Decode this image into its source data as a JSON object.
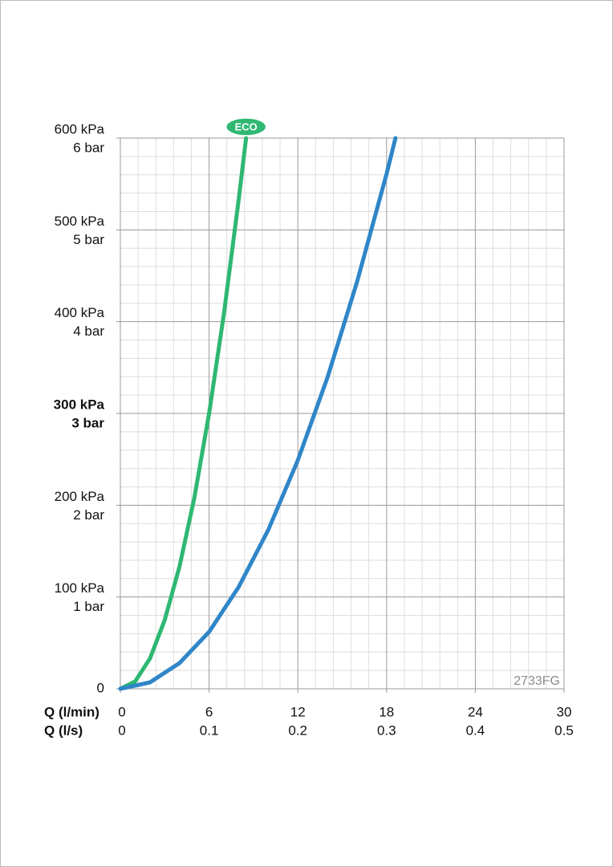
{
  "chart_data": {
    "type": "line",
    "x_label": "Q (l/min)",
    "x2_label": "Q (l/s)",
    "xlim": [
      0,
      30
    ],
    "xticks": [
      0,
      6,
      12,
      18,
      24,
      30
    ],
    "x2ticks": [
      0,
      0.1,
      0.2,
      0.3,
      0.4,
      0.5
    ],
    "ylim": [
      0,
      600
    ],
    "yticks": [
      {
        "value": 0,
        "label": "0"
      },
      {
        "value": 100,
        "label": "100 kPa",
        "sublabel": "1 bar"
      },
      {
        "value": 200,
        "label": "200 kPa",
        "sublabel": "2 bar"
      },
      {
        "value": 300,
        "label": "300 kPa",
        "sublabel": "3 bar"
      },
      {
        "value": 400,
        "label": "400 kPa",
        "sublabel": "4 bar"
      },
      {
        "value": 500,
        "label": "500 kPa",
        "sublabel": "5 bar"
      },
      {
        "value": 600,
        "label": "600 kPa",
        "sublabel": "6 bar"
      }
    ],
    "bold_ytick": 300,
    "grid": true,
    "minor_divisions": 5,
    "code": "2733FG",
    "series": [
      {
        "badge": "ECO",
        "color": "#2eb872",
        "x": [
          0,
          1,
          2,
          3,
          4,
          5,
          6,
          7,
          8,
          8.5
        ],
        "values": [
          0,
          8,
          33,
          75,
          133,
          208,
          300,
          408,
          533,
          600
        ]
      },
      {
        "color": "#2f86c8",
        "x": [
          0,
          2,
          4,
          6,
          8,
          10,
          12,
          14,
          16,
          18,
          18.6
        ],
        "values": [
          0,
          7,
          28,
          62,
          111,
          173,
          249,
          339,
          443,
          561,
          600
        ]
      }
    ]
  }
}
